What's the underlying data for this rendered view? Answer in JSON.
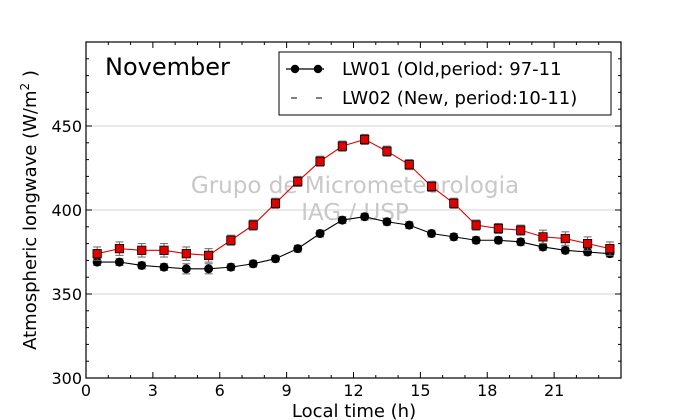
{
  "chart_data": {
    "type": "line",
    "annotation": "November",
    "xlabel": "Local time (h)",
    "ylabel_main": "Atmospheric longwave (W/m",
    "ylabel_sup": "2",
    "ylabel_close": " )",
    "xlim": [
      0,
      24
    ],
    "ylim": [
      300,
      500
    ],
    "x_ticks": [
      0,
      3,
      6,
      9,
      12,
      15,
      18,
      21
    ],
    "y_ticks": [
      300,
      350,
      400,
      450
    ],
    "grid": "horizontal",
    "legend_position": "top-right",
    "x": [
      0.5,
      1.5,
      2.5,
      3.5,
      4.5,
      5.5,
      6.5,
      7.5,
      8.5,
      9.5,
      10.5,
      11.5,
      12.5,
      13.5,
      14.5,
      15.5,
      16.5,
      17.5,
      18.5,
      19.5,
      20.5,
      21.5,
      22.5,
      23.5
    ],
    "series": [
      {
        "name": "LW01 (Old,period: 97-11",
        "color": "#000000",
        "marker": "circle",
        "line": "solid",
        "values": [
          369,
          369,
          367,
          366,
          365,
          365,
          366,
          368,
          371,
          377,
          386,
          394,
          396,
          393,
          391,
          386,
          384,
          382,
          382,
          381,
          378,
          376,
          375,
          374
        ],
        "errors": [
          2,
          2,
          2,
          2,
          3,
          3,
          2,
          2,
          2,
          2,
          2,
          2,
          2,
          2,
          2,
          2,
          2,
          2,
          2,
          2,
          2,
          2,
          2,
          2
        ]
      },
      {
        "name": "LW02 (New, period:10-11)",
        "color": "#e00000",
        "marker": "square",
        "line": "solid",
        "values": [
          374,
          377,
          376,
          376,
          374,
          373,
          382,
          391,
          404,
          417,
          429,
          438,
          442,
          435,
          427,
          414,
          404,
          391,
          389,
          388,
          384,
          383,
          380,
          377
        ],
        "errors": [
          4,
          4,
          4,
          4,
          4,
          4,
          3,
          3,
          3,
          3,
          3,
          3,
          3,
          3,
          3,
          3,
          3,
          3,
          3,
          3,
          4,
          4,
          4,
          4
        ]
      }
    ],
    "watermark": [
      "Grupo de Micrometeorologia",
      "IAG / USP"
    ]
  }
}
